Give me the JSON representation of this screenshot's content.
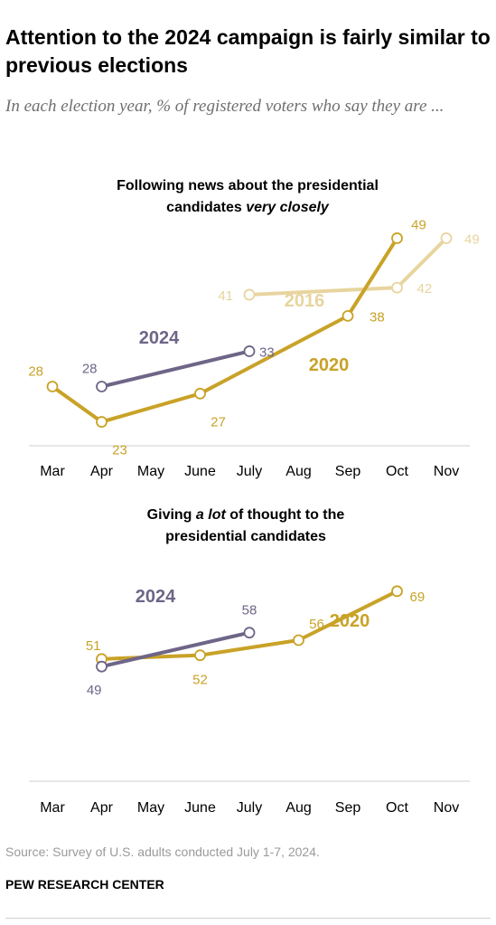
{
  "title": "Attention to the 2024 campaign is fairly similar to previous elections",
  "subtitle": "In each election year, % of registered voters who say they are ...",
  "colors": {
    "y2024": "#6e6587",
    "y2020": "#c9a227",
    "y2016": "#e8d49e",
    "axis": "#cfcfcf",
    "text": "#000000",
    "muted": "#9a9a9a"
  },
  "chart_data": [
    {
      "type": "line",
      "title_parts": [
        "Following news about the presidential",
        "candidates ",
        "very closely"
      ],
      "x_categories": [
        "Mar",
        "Apr",
        "May",
        "June",
        "July",
        "Aug",
        "Sep",
        "Oct",
        "Nov"
      ],
      "ylim": [
        20,
        52
      ],
      "grid": false,
      "series": [
        {
          "name": "2016",
          "color_key": "y2016",
          "points": [
            {
              "x": "July",
              "y": 41
            },
            {
              "x": "Oct",
              "y": 42
            },
            {
              "x": "Nov",
              "y": 49
            }
          ],
          "labels": [
            "41",
            "42",
            "49"
          ]
        },
        {
          "name": "2020",
          "color_key": "y2020",
          "points": [
            {
              "x": "Mar",
              "y": 28
            },
            {
              "x": "Apr",
              "y": 23
            },
            {
              "x": "June",
              "y": 27
            },
            {
              "x": "Sep",
              "y": 38
            },
            {
              "x": "Oct",
              "y": 49
            }
          ],
          "labels": [
            "28",
            "23",
            "27",
            "38",
            "49"
          ]
        },
        {
          "name": "2024",
          "color_key": "y2024",
          "points": [
            {
              "x": "Apr",
              "y": 28
            },
            {
              "x": "July",
              "y": 33
            }
          ],
          "labels": [
            "28",
            "33"
          ]
        }
      ]
    },
    {
      "type": "line",
      "title_parts": [
        "Giving ",
        "a lot",
        " of thought to the",
        "presidential candidates"
      ],
      "x_categories": [
        "Mar",
        "Apr",
        "May",
        "June",
        "July",
        "Aug",
        "Sep",
        "Oct",
        "Nov"
      ],
      "ylim": [
        20,
        80
      ],
      "grid": false,
      "series": [
        {
          "name": "2020",
          "color_key": "y2020",
          "points": [
            {
              "x": "Apr",
              "y": 51
            },
            {
              "x": "June",
              "y": 52
            },
            {
              "x": "Aug",
              "y": 56
            },
            {
              "x": "Oct",
              "y": 69
            }
          ],
          "labels": [
            "51",
            "52",
            "56",
            "69"
          ]
        },
        {
          "name": "2024",
          "color_key": "y2024",
          "points": [
            {
              "x": "Apr",
              "y": 49
            },
            {
              "x": "July",
              "y": 58
            }
          ],
          "labels": [
            "49",
            "58"
          ]
        }
      ]
    }
  ],
  "source": "Source: Survey of U.S. adults conducted July 1-7, 2024.",
  "org": "PEW RESEARCH CENTER"
}
